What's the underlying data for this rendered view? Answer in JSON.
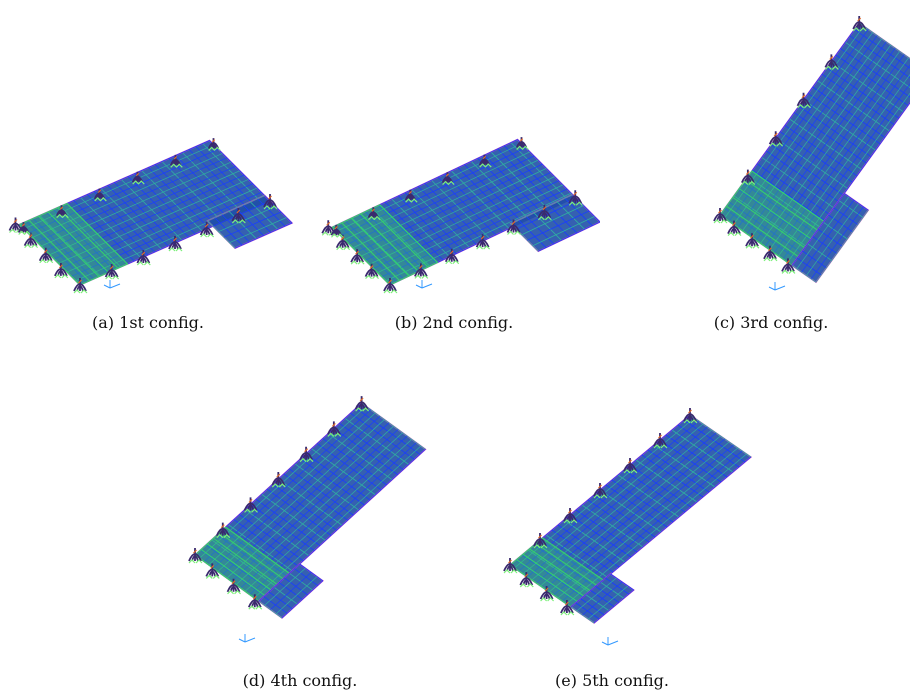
{
  "figure": {
    "panels": [
      {
        "id": "a",
        "caption": "(a) 1st config.",
        "model": "structural-model-1"
      },
      {
        "id": "b",
        "caption": "(b) 2nd config.",
        "model": "structural-model-2"
      },
      {
        "id": "c",
        "caption": "(c) 3rd config.",
        "model": "structural-model-3"
      },
      {
        "id": "d",
        "caption": "(d) 4th config.",
        "model": "structural-model-4"
      },
      {
        "id": "e",
        "caption": "(e) 5th config.",
        "model": "structural-model-5"
      }
    ],
    "colors": {
      "roof_fill": "#1f4fa8",
      "grid_main": "#1a3dff",
      "grid_secondary": "#2fb0a0",
      "band_green": "#35d36a",
      "edge_magenta": "#c040c0",
      "support": "#3a2a6e",
      "support_accent": "#e06a2a",
      "base": "#7cf07a"
    }
  }
}
